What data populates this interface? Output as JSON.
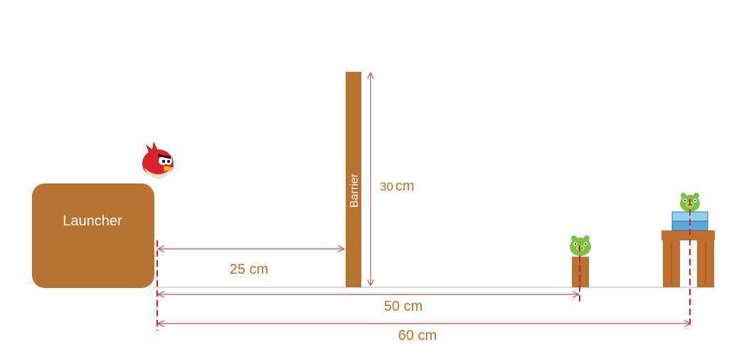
{
  "launcher": {
    "label": "Launcher"
  },
  "barrier": {
    "label": "Barrier",
    "height_value": "30",
    "height_unit": "cm"
  },
  "dimensions": [
    {
      "id": "launcher-to-barrier",
      "label": "25 cm"
    },
    {
      "id": "launcher-to-pig-1",
      "label": "50 cm"
    },
    {
      "id": "launcher-to-pig-2",
      "label": "60 cm"
    }
  ],
  "colors": {
    "block": "#b87333",
    "dimension_line": "#c0504d",
    "dimension_text": "#c0701e",
    "ground": "#d9d9d9",
    "pig": "#7dc242",
    "bird": "#d9222a",
    "ice": "#5aa9d6"
  }
}
